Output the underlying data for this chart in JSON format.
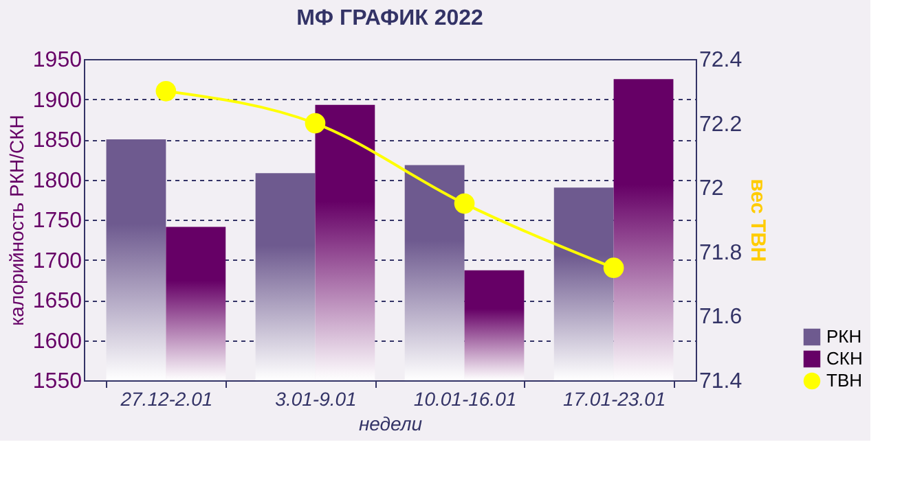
{
  "chart_data": {
    "type": "bar",
    "title": "МФ ГРАФИК 2022",
    "xlabel": "недели",
    "ylabel": "калорийность РКН/СКН",
    "y2label": "вес ТВН",
    "categories": [
      "27.12-2.01",
      "3.01-9.01",
      "10.01-16.01",
      "17.01-23.01"
    ],
    "series": [
      {
        "name": "РКН",
        "color": "#6e5a8f",
        "values": [
          1850,
          1808,
          1818,
          1790
        ]
      },
      {
        "name": "СКН",
        "color": "#660066",
        "values": [
          1741,
          1893,
          1687,
          1925
        ]
      },
      {
        "name": "ТВН",
        "color": "#ffff00",
        "type": "line",
        "axis": "y2",
        "marker": "circle",
        "values": [
          72.3,
          72.2,
          71.95,
          71.75
        ]
      }
    ],
    "ylim": [
      1550,
      1950
    ],
    "yticks": [
      1550,
      1600,
      1650,
      1700,
      1750,
      1800,
      1850,
      1900,
      1950
    ],
    "y2lim": [
      71.4,
      72.4
    ],
    "y2ticks": [
      71.4,
      71.6,
      71.8,
      {
        "value": 72,
        "label": "72"
      },
      72.2,
      72.4
    ],
    "grid": "y",
    "legend": "bottom right"
  }
}
